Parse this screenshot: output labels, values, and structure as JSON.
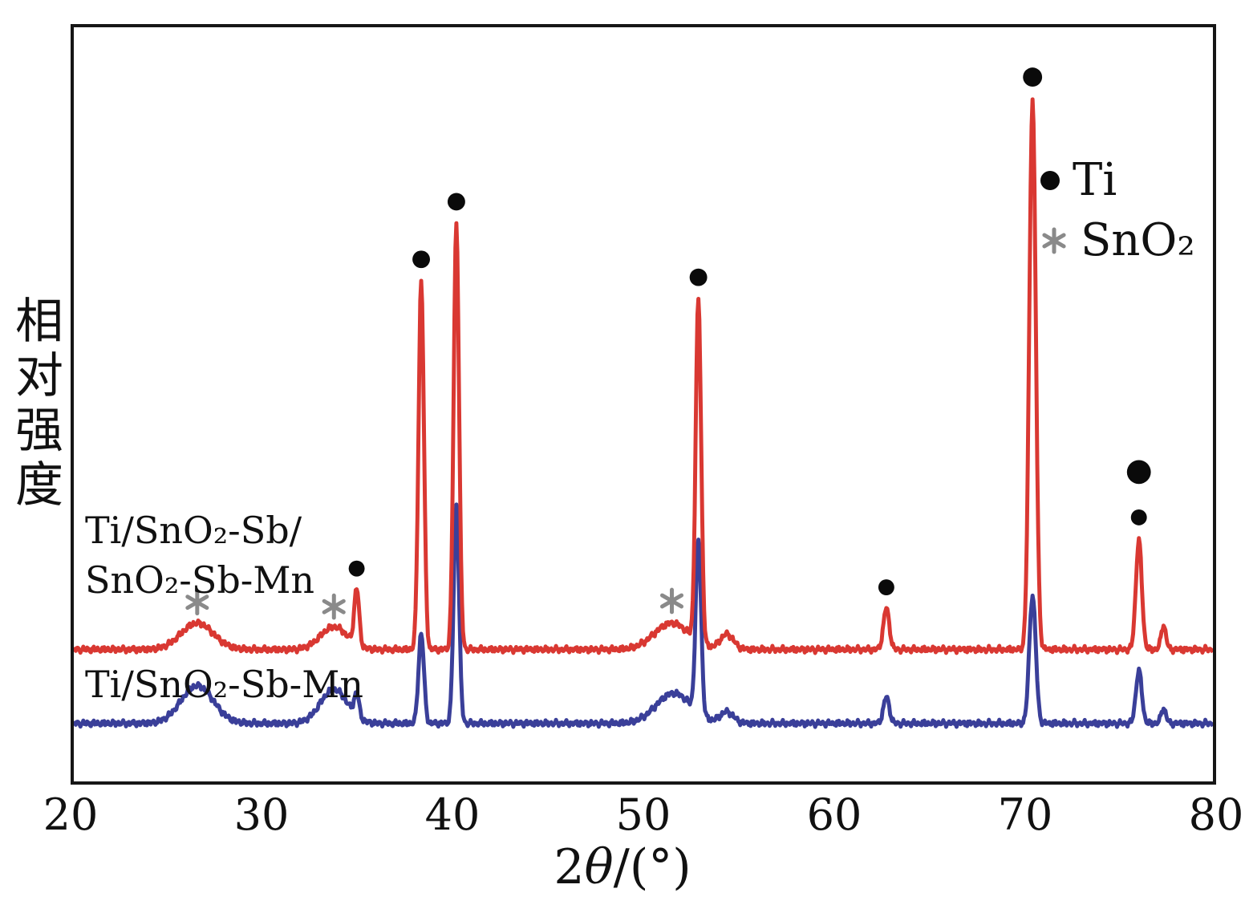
{
  "figure": {
    "ylabel": "相对强度",
    "xlabel": {
      "prefix": "2",
      "theta": "θ",
      "suffix": "/(°)"
    }
  },
  "legend": {
    "items": [
      {
        "symbol": "dot",
        "label": "Ti",
        "color": "#0a0a0a"
      },
      {
        "symbol": "star",
        "label": "SnO₂",
        "color": "#8a8a8a"
      }
    ]
  },
  "chart_data": {
    "type": "line",
    "subtype": "xrd-pattern",
    "title": "",
    "xlabel": "2θ/(°)",
    "ylabel": "相对强度",
    "x_range": [
      20,
      80
    ],
    "x_ticks": [
      20,
      30,
      40,
      50,
      60,
      70,
      80
    ],
    "grid": false,
    "legend_position": "upper-right",
    "series": [
      {
        "name": "Ti/SnO₂-Sb/SnO₂-Sb-Mn",
        "label_lines": [
          "Ti/SnO₂-Sb/",
          "SnO₂-Sb-Mn"
        ],
        "short": "red",
        "color": "#d93832",
        "baseline": 0.175,
        "peaks": [
          {
            "two_theta": 26.5,
            "height": 0.035,
            "width": 1.2,
            "phase": "SnO₂"
          },
          {
            "two_theta": 33.7,
            "height": 0.03,
            "width": 1.0,
            "phase": "SnO₂"
          },
          {
            "two_theta": 34.9,
            "height": 0.075,
            "width": 0.18,
            "phase": "Ti"
          },
          {
            "two_theta": 38.3,
            "height": 0.49,
            "width": 0.2,
            "phase": "Ti"
          },
          {
            "two_theta": 40.15,
            "height": 0.565,
            "width": 0.2,
            "phase": "Ti"
          },
          {
            "two_theta": 51.5,
            "height": 0.035,
            "width": 1.3,
            "phase": "SnO₂"
          },
          {
            "two_theta": 52.9,
            "height": 0.455,
            "width": 0.2,
            "phase": "Ti"
          },
          {
            "two_theta": 54.4,
            "height": 0.02,
            "width": 0.5,
            "phase": ""
          },
          {
            "two_theta": 62.8,
            "height": 0.055,
            "width": 0.22,
            "phase": "Ti"
          },
          {
            "two_theta": 70.5,
            "height": 0.73,
            "width": 0.24,
            "phase": "Ti"
          },
          {
            "two_theta": 76.1,
            "height": 0.145,
            "width": 0.22,
            "phase": "Ti"
          },
          {
            "two_theta": 77.4,
            "height": 0.032,
            "width": 0.18,
            "phase": ""
          }
        ]
      },
      {
        "name": "Ti/SnO₂-Sb-Mn",
        "label_lines": [
          "Ti/SnO₂-Sb-Mn"
        ],
        "short": "blue",
        "color": "#3a3f99",
        "baseline": 0.077,
        "peaks": [
          {
            "two_theta": 26.5,
            "height": 0.05,
            "width": 1.2,
            "phase": "SnO₂"
          },
          {
            "two_theta": 33.7,
            "height": 0.045,
            "width": 1.0,
            "phase": "SnO₂"
          },
          {
            "two_theta": 34.9,
            "height": 0.03,
            "width": 0.18,
            "phase": "Ti"
          },
          {
            "two_theta": 38.3,
            "height": 0.12,
            "width": 0.2,
            "phase": "Ti"
          },
          {
            "two_theta": 40.15,
            "height": 0.29,
            "width": 0.2,
            "phase": "Ti"
          },
          {
            "two_theta": 51.6,
            "height": 0.04,
            "width": 1.3,
            "phase": "SnO₂"
          },
          {
            "two_theta": 52.9,
            "height": 0.23,
            "width": 0.2,
            "phase": "Ti"
          },
          {
            "two_theta": 54.4,
            "height": 0.015,
            "width": 0.5,
            "phase": ""
          },
          {
            "two_theta": 62.8,
            "height": 0.035,
            "width": 0.22,
            "phase": "Ti"
          },
          {
            "two_theta": 70.5,
            "height": 0.17,
            "width": 0.24,
            "phase": "Ti"
          },
          {
            "two_theta": 76.1,
            "height": 0.07,
            "width": 0.22,
            "phase": "Ti"
          },
          {
            "two_theta": 77.4,
            "height": 0.02,
            "width": 0.18,
            "phase": ""
          }
        ]
      }
    ],
    "markers": [
      {
        "x": 26.5,
        "symbol": "star"
      },
      {
        "x": 33.7,
        "symbol": "star"
      },
      {
        "x": 34.9,
        "symbol": "dot",
        "size": 10
      },
      {
        "x": 38.3,
        "symbol": "dot",
        "size": 11
      },
      {
        "x": 40.15,
        "symbol": "dot",
        "size": 11
      },
      {
        "x": 51.5,
        "symbol": "star"
      },
      {
        "x": 52.9,
        "symbol": "dot",
        "size": 11
      },
      {
        "x": 62.8,
        "symbol": "dot",
        "size": 10
      },
      {
        "x": 70.5,
        "symbol": "dot",
        "size": 12
      },
      {
        "x": 76.1,
        "symbol": "dot",
        "size": 10
      },
      {
        "x": 76.1,
        "symbol": "dot",
        "size": 15,
        "lift": 52
      }
    ]
  }
}
